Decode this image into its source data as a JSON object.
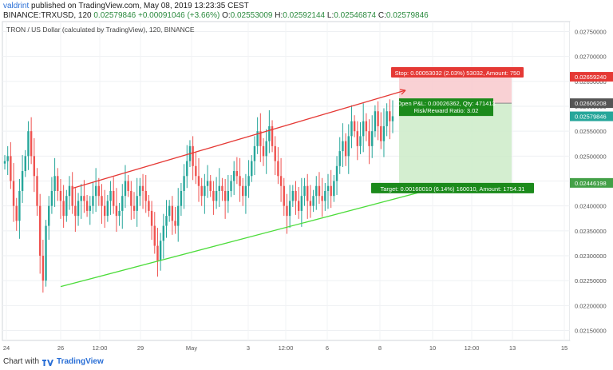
{
  "header": {
    "user": "valdrint",
    "published": "published on TradingView.com, May 08, 2019 13:23:35 CEST",
    "symbol": "BINANCE:TRXUSD, 120",
    "last": "0.02579846",
    "change": "+0.00091046 (+3.66%)",
    "open_label": "O:",
    "open": "0.02553009",
    "high_label": "H:",
    "high": "0.02592144",
    "low_label": "L:",
    "low": "0.02546874",
    "close_label": "C:",
    "close": "0.02579846"
  },
  "chart_data": {
    "type": "candlestick",
    "title": "TRON / US Dollar (calculated by TradingView), 120, BINANCE",
    "ylim": [
      0.0213,
      0.0277
    ],
    "y_ticks": [
      "0.02750000",
      "0.02700000",
      "0.02650000",
      "0.02600000",
      "0.02550000",
      "0.02500000",
      "0.02450000",
      "0.02400000",
      "0.02350000",
      "0.02300000",
      "0.02250000",
      "0.02200000",
      "0.02150000"
    ],
    "x_ticks": [
      "24",
      "26",
      "12:00",
      "29",
      "May",
      "3",
      "12:00",
      "6",
      "8",
      "10",
      "12:00",
      "13",
      "15"
    ],
    "price_badges": [
      {
        "label": "0.02659240",
        "color": "#e53935"
      },
      {
        "label": "0.02606208",
        "color": "#555555"
      },
      {
        "label": "0.02579846",
        "color": "#26a69a"
      },
      {
        "label": "0.02446198",
        "color": "#43a047"
      }
    ],
    "position": {
      "stop_label": "Stop: 0.00053032 (2.03%) 53032, Amount: 750",
      "pnl_label": "Open P&L: 0.00026362, Qty: 471413",
      "rr_label": "Risk/Reward Ratio: 3.02",
      "target_label": "Target: 0.00160010 (6.14%) 160010, Amount: 1754.31",
      "entry": 0.02606208,
      "stop": 0.0265924,
      "target": 0.02446198
    },
    "channel": {
      "upper": [
        [
          0.0,
          0.02436
        ],
        [
          1.0,
          0.02632
        ]
      ],
      "lower": [
        [
          0.0,
          0.02238
        ],
        [
          1.0,
          0.0244
        ]
      ]
    },
    "colors": {
      "up": "#26a69a",
      "down": "#ef5350",
      "channel_up": "#e53935",
      "channel_low": "#4cdc3a"
    },
    "candles_close": [
      0.0249,
      0.025,
      0.0245,
      0.024,
      0.0237,
      0.0243,
      0.0247,
      0.025,
      0.0255,
      0.025,
      0.0246,
      0.024,
      0.023,
      0.0225,
      0.0236,
      0.024,
      0.0243,
      0.0246,
      0.0243,
      0.0241,
      0.0238,
      0.0242,
      0.0244,
      0.024,
      0.0238,
      0.0241,
      0.0242,
      0.0241,
      0.0239,
      0.024,
      0.0242,
      0.0244,
      0.0242,
      0.024,
      0.0238,
      0.0241,
      0.0243,
      0.024,
      0.0238,
      0.0239,
      0.0242,
      0.0245,
      0.0243,
      0.024,
      0.0239,
      0.0242,
      0.0244,
      0.0243,
      0.0241,
      0.0239,
      0.0236,
      0.0232,
      0.0229,
      0.0233,
      0.0236,
      0.0238,
      0.024,
      0.0237,
      0.0236,
      0.024,
      0.0243,
      0.0246,
      0.0249,
      0.0252,
      0.0248,
      0.0246,
      0.0244,
      0.0242,
      0.0244,
      0.0245,
      0.0243,
      0.0241,
      0.0243,
      0.0244,
      0.0243,
      0.0241,
      0.0243,
      0.0245,
      0.0247,
      0.0246,
      0.0244,
      0.0242,
      0.0244,
      0.0246,
      0.0249,
      0.0252,
      0.0255,
      0.0252,
      0.025,
      0.0253,
      0.0256,
      0.0252,
      0.0249,
      0.0246,
      0.0244,
      0.024,
      0.0238,
      0.0241,
      0.0243,
      0.0241,
      0.0239,
      0.0242,
      0.0244,
      0.0241,
      0.024,
      0.0242,
      0.0244,
      0.0242,
      0.0241,
      0.0243,
      0.0244,
      0.0242,
      0.0245,
      0.0248,
      0.0251,
      0.0253,
      0.025,
      0.0254,
      0.0257,
      0.0255,
      0.0252,
      0.0254,
      0.0257,
      0.0255,
      0.0252,
      0.0255,
      0.0259,
      0.0256,
      0.0253,
      0.0256,
      0.0259,
      0.0257,
      0.0258
    ]
  },
  "footer": {
    "prefix": "Chart with",
    "brand": "TradingView"
  }
}
